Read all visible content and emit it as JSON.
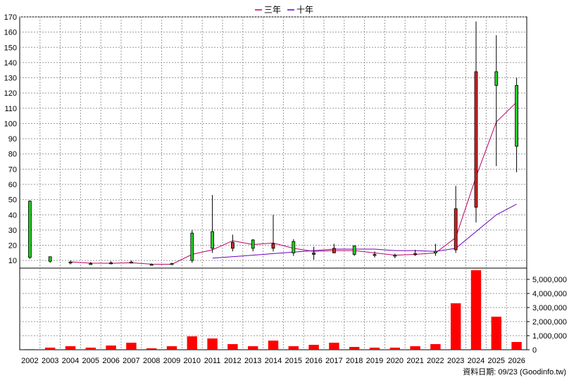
{
  "legend": [
    {
      "label": "三年",
      "color": "#c0006a"
    },
    {
      "label": "十年",
      "color": "#6a00c0"
    }
  ],
  "footer": "資料日期: 09/23  (Goodinfo.tw)",
  "chart_data": [
    {
      "type": "candlestick",
      "categories": [
        "2002",
        "2003",
        "2004",
        "2005",
        "2006",
        "2007",
        "2008",
        "2009",
        "2010",
        "2011",
        "2012",
        "2013",
        "2014",
        "2015",
        "2016",
        "2017",
        "2018",
        "2019",
        "2020",
        "2021",
        "2022",
        "2023",
        "2024",
        "2025",
        "2026"
      ],
      "ylim": [
        5,
        170
      ],
      "yticks": [
        10,
        20,
        30,
        40,
        50,
        60,
        70,
        80,
        90,
        100,
        110,
        120,
        130,
        140,
        150,
        160,
        170
      ],
      "grid": true,
      "legend_position": "top-center",
      "up_color": "#22cc22",
      "down_color": "#cc2222",
      "series": [
        {
          "type": "ohlc",
          "open": [
            12,
            9.5,
            8.5,
            8,
            8.5,
            8.5,
            7.5,
            7.5,
            10,
            18,
            22,
            18,
            21,
            15,
            15,
            18,
            14,
            14,
            13.5,
            14.5,
            15,
            44,
            134,
            125,
            85
          ],
          "high": [
            49.5,
            12.5,
            10,
            9,
            9.5,
            10,
            8,
            8.5,
            30,
            53,
            27,
            24,
            40,
            24,
            19,
            21,
            20,
            16,
            14.5,
            17,
            21,
            59,
            167,
            158,
            130
          ],
          "low": [
            11,
            8.5,
            7.5,
            7.5,
            7.5,
            8,
            7,
            7,
            8.5,
            15,
            16,
            16,
            16,
            13,
            10.5,
            15,
            13,
            12,
            11.5,
            13,
            13,
            15,
            35,
            72,
            68
          ],
          "close": [
            49,
            12.5,
            9,
            8,
            8,
            9,
            7.5,
            8,
            28,
            29,
            18,
            23.5,
            18,
            22.5,
            14,
            15,
            19.5,
            13.5,
            13.5,
            14,
            16,
            17,
            45,
            134,
            125
          ]
        },
        {
          "name": "三年",
          "type": "line",
          "color": "#c0006a",
          "values": [
            null,
            null,
            9,
            8.3,
            8.2,
            8.5,
            7.6,
            7.5,
            14,
            17,
            23,
            20.5,
            21.5,
            18,
            16,
            16.5,
            16.5,
            15,
            13.5,
            14,
            15,
            25,
            65,
            101,
            114
          ]
        },
        {
          "name": "十年",
          "type": "line",
          "color": "#6a00c0",
          "values": [
            null,
            null,
            null,
            null,
            null,
            null,
            null,
            null,
            null,
            11.5,
            12.5,
            13.5,
            14.5,
            15.5,
            16.5,
            17.5,
            17.5,
            17.5,
            16.5,
            16.5,
            16,
            18,
            29,
            40,
            47
          ]
        }
      ]
    },
    {
      "type": "bar",
      "categories": [
        "2002",
        "2003",
        "2004",
        "2005",
        "2006",
        "2007",
        "2008",
        "2009",
        "2010",
        "2011",
        "2012",
        "2013",
        "2014",
        "2015",
        "2016",
        "2017",
        "2018",
        "2019",
        "2020",
        "2021",
        "2022",
        "2023",
        "2024",
        "2025",
        "2026"
      ],
      "ylim": [
        0,
        5800000
      ],
      "yticks": [
        0,
        1000000,
        2000000,
        3000000,
        4000000,
        5000000
      ],
      "ytick_labels": [
        "0",
        "1,000,000",
        "2,000,000",
        "3,000,000",
        "4,000,000",
        "5,000,000"
      ],
      "color": "#ff0000",
      "values": [
        40000,
        150000,
        250000,
        150000,
        300000,
        500000,
        100000,
        250000,
        950000,
        800000,
        400000,
        250000,
        650000,
        250000,
        350000,
        500000,
        200000,
        150000,
        150000,
        250000,
        400000,
        3300000,
        5650000,
        2350000,
        550000
      ]
    }
  ]
}
